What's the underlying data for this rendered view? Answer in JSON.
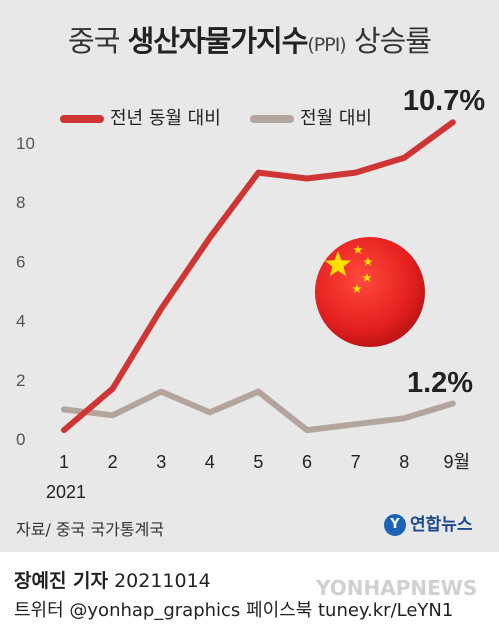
{
  "header": {
    "title_prefix": "중국",
    "title_bold": "생산자물가지수",
    "title_sub": "(PPI)",
    "title_suffix": "상승률"
  },
  "legend": {
    "series1": "전년 동월 대비",
    "series2": "전월 대비"
  },
  "annotations": {
    "last_yoy": "10.7%",
    "last_mom": "1.2%"
  },
  "source": "자료/ 중국 국가통계국",
  "logo": "연합뉴스",
  "footer": {
    "author": "장예진 기자",
    "date": "20211014",
    "social": "트위터 @yonhap_graphics 페이스북 tuney.kr/LeYN1"
  },
  "watermark": "YONHAPNEWS",
  "colors": {
    "yoy": "#d03536",
    "mom": "#b3a59e",
    "flag_red": "#e5201f",
    "flag_star": "#ffde00"
  },
  "icon": "china-flag-ball",
  "chart_data": {
    "type": "line",
    "x": [
      1,
      2,
      3,
      4,
      5,
      6,
      7,
      8,
      9
    ],
    "x_tick_labels": [
      "1",
      "2",
      "3",
      "4",
      "5",
      "6",
      "7",
      "8",
      "9월"
    ],
    "x_year_label": "2021",
    "y_ticks": [
      0,
      2,
      4,
      6,
      8,
      10
    ],
    "ylim": [
      0,
      11
    ],
    "grid": false,
    "legend_position": "top-left",
    "series": [
      {
        "name": "전년 동월 대비",
        "values": [
          0.3,
          1.7,
          4.4,
          6.8,
          9.0,
          8.8,
          9.0,
          9.5,
          10.7
        ]
      },
      {
        "name": "전월 대비",
        "values": [
          1.0,
          0.8,
          1.6,
          0.9,
          1.6,
          0.3,
          0.5,
          0.7,
          1.2
        ]
      }
    ]
  }
}
